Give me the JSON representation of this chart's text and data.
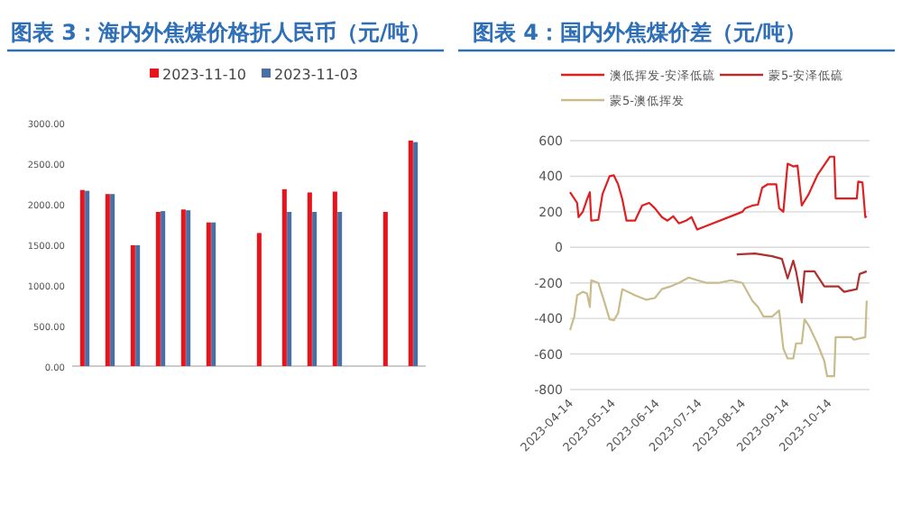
{
  "chart_data": [
    {
      "type": "bar",
      "title": "图表 3：海内外焦煤价格折人民币（元/吨）",
      "categories": [
        null,
        null,
        null,
        null,
        null,
        null,
        null,
        null,
        null,
        null,
        null,
        null,
        null,
        null
      ],
      "series": [
        {
          "name": "2023-11-10",
          "color": "#e8141b",
          "values": [
            2170,
            2120,
            1490,
            1900,
            1930,
            1770,
            null,
            1640,
            2180,
            2140,
            2150,
            null,
            1900,
            2780
          ]
        },
        {
          "name": "2023-11-03",
          "color": "#4a6fa5",
          "values": [
            2160,
            2120,
            1490,
            1910,
            1920,
            1770,
            null,
            null,
            1900,
            1900,
            1900,
            null,
            null,
            2760
          ]
        }
      ],
      "ylim": [
        0,
        3000
      ],
      "yticks": [
        {
          "value": 0,
          "label": "0.00"
        },
        {
          "value": 500,
          "label": "500.00"
        },
        {
          "value": 1000,
          "label": "1000.00"
        },
        {
          "value": 1500,
          "label": "1500.00"
        },
        {
          "value": 2000,
          "label": "2000.00"
        },
        {
          "value": 2500,
          "label": "2500.00"
        },
        {
          "value": 3000,
          "label": "3000.00"
        }
      ],
      "legend": "top",
      "grid": false
    },
    {
      "type": "line",
      "title": "图表 4：国内外焦煤价差（元/吨）",
      "series": [
        {
          "name": "澳低挥发-安泽低硫",
          "color": "#e02020",
          "x": [
            "2023-04-14",
            "2023-04-19",
            "2023-04-20",
            "2023-04-23",
            "2023-04-26",
            "2023-04-28",
            "2023-04-29",
            "2023-05-04",
            "2023-05-07",
            "2023-05-12",
            "2023-05-15",
            "2023-05-18",
            "2023-05-21",
            "2023-05-24",
            "2023-05-30",
            "2023-06-04",
            "2023-06-09",
            "2023-06-13",
            "2023-06-18",
            "2023-06-22",
            "2023-06-26",
            "2023-06-30",
            "2023-07-05",
            "2023-07-09",
            "2023-07-13",
            "2023-08-14",
            "2023-08-16",
            "2023-08-21",
            "2023-08-25",
            "2023-08-28",
            "2023-09-01",
            "2023-09-07",
            "2023-09-09",
            "2023-09-12",
            "2023-09-15",
            "2023-09-19",
            "2023-09-22",
            "2023-09-25",
            "2023-09-30",
            "2023-10-06",
            "2023-10-15",
            "2023-10-18",
            "2023-10-19",
            "2023-10-30",
            "2023-11-03",
            "2023-11-04",
            "2023-11-07",
            "2023-11-09",
            "2023-11-10"
          ],
          "values": [
            310,
            250,
            170,
            200,
            270,
            310,
            150,
            155,
            300,
            400,
            405,
            355,
            270,
            150,
            150,
            235,
            250,
            220,
            170,
            150,
            175,
            135,
            150,
            170,
            100,
            200,
            220,
            235,
            240,
            335,
            355,
            355,
            220,
            200,
            470,
            455,
            460,
            235,
            300,
            405,
            510,
            510,
            275,
            275,
            275,
            370,
            365,
            170,
            175
          ]
        },
        {
          "name": "蒙5-安泽低硫",
          "color": "#b03030",
          "x": [
            "2023-08-10",
            "2023-08-23",
            "2023-09-04",
            "2023-09-11",
            "2023-09-15",
            "2023-09-19",
            "2023-09-21",
            "2023-09-25",
            "2023-09-27",
            "2023-10-04",
            "2023-10-11",
            "2023-10-21",
            "2023-10-25",
            "2023-11-03",
            "2023-11-05",
            "2023-11-10"
          ],
          "values": [
            -40,
            -35,
            -50,
            -65,
            -175,
            -75,
            -135,
            -310,
            -135,
            -135,
            -220,
            -220,
            -250,
            -235,
            -150,
            -135
          ]
        },
        {
          "name": "蒙5-澳低挥发",
          "color": "#c8bc8c",
          "x": [
            "2023-04-14",
            "2023-04-17",
            "2023-04-19",
            "2023-04-23",
            "2023-04-26",
            "2023-04-28",
            "2023-04-29",
            "2023-05-04",
            "2023-05-08",
            "2023-05-12",
            "2023-05-15",
            "2023-05-18",
            "2023-05-21",
            "2023-05-30",
            "2023-06-07",
            "2023-06-13",
            "2023-06-18",
            "2023-06-24",
            "2023-06-30",
            "2023-07-07",
            "2023-07-13",
            "2023-07-20",
            "2023-07-28",
            "2023-08-06",
            "2023-08-14",
            "2023-08-21",
            "2023-08-25",
            "2023-08-29",
            "2023-09-04",
            "2023-09-09",
            "2023-09-12",
            "2023-09-15",
            "2023-09-19",
            "2023-09-21",
            "2023-09-25",
            "2023-09-27",
            "2023-09-30",
            "2023-10-06",
            "2023-10-11",
            "2023-10-13",
            "2023-10-18",
            "2023-10-19",
            "2023-10-30",
            "2023-11-01",
            "2023-11-09",
            "2023-11-10"
          ],
          "values": [
            -465,
            -390,
            -270,
            -250,
            -260,
            -335,
            -185,
            -200,
            -300,
            -405,
            -410,
            -370,
            -235,
            -270,
            -295,
            -285,
            -235,
            -220,
            -200,
            -170,
            -185,
            -200,
            -200,
            -185,
            -200,
            -300,
            -335,
            -390,
            -390,
            -355,
            -570,
            -625,
            -625,
            -540,
            -540,
            -405,
            -440,
            -540,
            -640,
            -725,
            -725,
            -505,
            -505,
            -520,
            -505,
            -300
          ]
        }
      ],
      "xlim": [
        "2023-04-14",
        "2023-11-12"
      ],
      "xticks": [
        "2023-04-14",
        "2023-05-14",
        "2023-06-14",
        "2023-07-14",
        "2023-08-14",
        "2023-09-14",
        "2023-10-14"
      ],
      "ylim": [
        -800,
        600
      ],
      "yticks": [
        -800,
        -600,
        -400,
        -200,
        0,
        200,
        400,
        600
      ],
      "legend": "top",
      "grid": "y"
    }
  ]
}
